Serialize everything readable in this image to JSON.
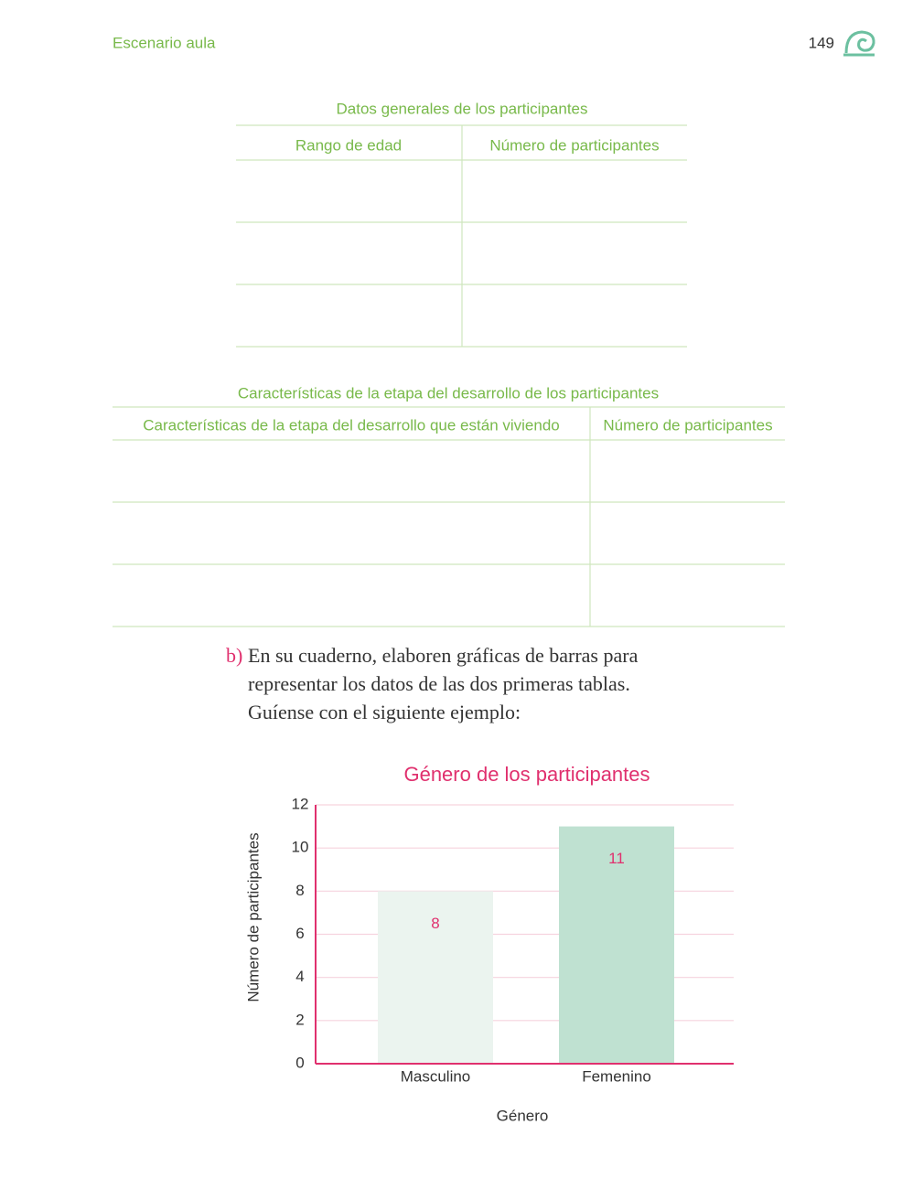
{
  "header": {
    "section": "Escenario aula",
    "page_number": "149"
  },
  "table1": {
    "caption": "Datos generales de los participantes",
    "columns": [
      "Rango de edad",
      "Número de participantes"
    ]
  },
  "table2": {
    "caption": "Características de la etapa del desarrollo de los participantes",
    "columns": [
      "Características de la etapa del desarrollo que están viviendo",
      "Número de participantes"
    ]
  },
  "instruction": {
    "marker": "b)",
    "lines": [
      "En su cuaderno, elaboren gráficas de barras para",
      "representar los datos de las dos primeras tablas.",
      "Guíense con el siguiente ejemplo:"
    ]
  },
  "chart_data": {
    "type": "bar",
    "title": "Género de los participantes",
    "x_label": "Género",
    "y_label": "Número de participantes",
    "categories": [
      "Masculino",
      "Femenino"
    ],
    "values": [
      8,
      11
    ],
    "colors": [
      "#ebf4ef",
      "#bfe1d1"
    ],
    "ylim": [
      0,
      12
    ],
    "yticks": [
      0,
      2,
      4,
      6,
      8,
      10,
      12
    ],
    "grid": true
  }
}
